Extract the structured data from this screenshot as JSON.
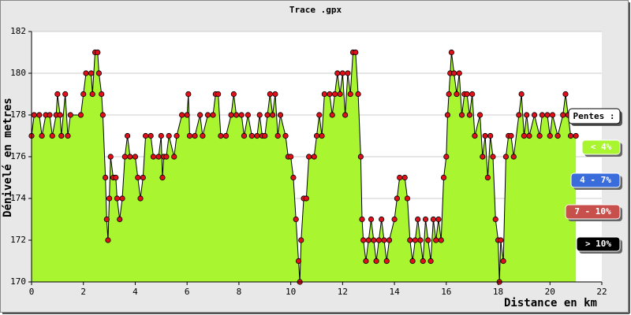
{
  "chart_data": {
    "type": "area",
    "title": "Trace .gpx",
    "x_label": "Distance en km",
    "y_label": "Dénivelé en metres",
    "x": [
      0.0,
      0.1,
      0.3,
      0.4,
      0.55,
      0.7,
      0.8,
      0.95,
      1.0,
      1.1,
      1.15,
      1.3,
      1.4,
      1.5,
      1.9,
      2.0,
      2.1,
      2.3,
      2.35,
      2.45,
      2.55,
      2.6,
      2.7,
      2.75,
      2.85,
      2.9,
      2.95,
      3.0,
      3.05,
      3.15,
      3.25,
      3.3,
      3.4,
      3.5,
      3.6,
      3.7,
      3.8,
      4.0,
      4.1,
      4.2,
      4.3,
      4.4,
      4.6,
      4.7,
      4.9,
      5.0,
      5.05,
      5.1,
      5.2,
      5.3,
      5.5,
      5.6,
      5.8,
      6.0,
      6.05,
      6.1,
      6.3,
      6.5,
      6.6,
      6.8,
      7.0,
      7.1,
      7.2,
      7.3,
      7.5,
      7.7,
      7.8,
      7.9,
      8.1,
      8.2,
      8.35,
      8.5,
      8.7,
      8.8,
      8.9,
      9.0,
      9.1,
      9.2,
      9.3,
      9.4,
      9.5,
      9.6,
      9.8,
      9.9,
      10.0,
      10.1,
      10.2,
      10.3,
      10.35,
      10.4,
      10.5,
      10.6,
      10.7,
      10.9,
      11.0,
      11.1,
      11.2,
      11.3,
      11.5,
      11.6,
      11.7,
      11.8,
      11.9,
      12.0,
      12.1,
      12.2,
      12.3,
      12.4,
      12.5,
      12.6,
      12.7,
      12.75,
      12.8,
      12.9,
      13.0,
      13.1,
      13.2,
      13.3,
      13.4,
      13.5,
      13.6,
      13.7,
      13.8,
      14.0,
      14.1,
      14.2,
      14.4,
      14.5,
      14.6,
      14.7,
      14.8,
      14.9,
      15.0,
      15.1,
      15.2,
      15.3,
      15.4,
      15.5,
      15.6,
      15.7,
      15.8,
      15.9,
      16.0,
      16.05,
      16.1,
      16.15,
      16.2,
      16.3,
      16.4,
      16.5,
      16.6,
      16.7,
      16.8,
      16.9,
      17.0,
      17.1,
      17.3,
      17.4,
      17.5,
      17.6,
      17.7,
      17.8,
      17.9,
      18.0,
      18.05,
      18.1,
      18.2,
      18.3,
      18.4,
      18.5,
      18.6,
      18.8,
      18.9,
      19.0,
      19.1,
      19.2,
      19.4,
      19.6,
      19.7,
      19.9,
      20.0,
      20.1,
      20.3,
      20.5,
      20.6,
      20.7,
      20.8,
      21.0
    ],
    "values": [
      177,
      178,
      178,
      177,
      178,
      178,
      177,
      178,
      179,
      178,
      177,
      179,
      177,
      178,
      178,
      179,
      180,
      180,
      179,
      181,
      181,
      180,
      179,
      178,
      175,
      173,
      172,
      174,
      176,
      175,
      175,
      174,
      173,
      174,
      176,
      177,
      176,
      176,
      175,
      174,
      175,
      177,
      177,
      176,
      176,
      177,
      175,
      176,
      176,
      177,
      176,
      177,
      178,
      178,
      179,
      177,
      177,
      178,
      177,
      178,
      178,
      179,
      179,
      177,
      177,
      178,
      179,
      178,
      178,
      177,
      178,
      177,
      177,
      178,
      177,
      177,
      178,
      179,
      178,
      179,
      177,
      178,
      177,
      176,
      176,
      175,
      173,
      171,
      170,
      172,
      174,
      174,
      176,
      176,
      177,
      178,
      177,
      179,
      179,
      178,
      179,
      180,
      179,
      180,
      178,
      180,
      179,
      181,
      181,
      179,
      176,
      173,
      172,
      171,
      172,
      173,
      172,
      171,
      172,
      173,
      172,
      171,
      172,
      173,
      174,
      175,
      175,
      174,
      172,
      171,
      172,
      173,
      172,
      171,
      173,
      172,
      171,
      173,
      172,
      173,
      172,
      175,
      176,
      178,
      179,
      180,
      181,
      180,
      179,
      180,
      178,
      179,
      179,
      178,
      179,
      177,
      178,
      176,
      177,
      175,
      177,
      176,
      173,
      172,
      170,
      172,
      171,
      176,
      177,
      177,
      176,
      178,
      179,
      177,
      178,
      177,
      178,
      177,
      178,
      178,
      177,
      178,
      177,
      178,
      179,
      178,
      177,
      177
    ],
    "xlim": [
      0,
      22
    ],
    "ylim": [
      170,
      182
    ],
    "xticks": [
      0,
      2,
      4,
      6,
      8,
      10,
      12,
      14,
      16,
      18,
      20,
      22
    ],
    "yticks": [
      170,
      172,
      174,
      176,
      178,
      180,
      182
    ],
    "grid": true,
    "color": "#a8f530",
    "line_color": "#000000",
    "point_color": "#e0101a",
    "legend": {
      "title": "Pentes :",
      "items": [
        {
          "label": "< 4%",
          "color": "#a8f530"
        },
        {
          "label": "4 - 7%",
          "color": "#3a6cdc"
        },
        {
          "label": "7 - 10%",
          "color": "#c8504c"
        },
        {
          "label": "> 10%",
          "color": "#000000"
        }
      ]
    }
  }
}
